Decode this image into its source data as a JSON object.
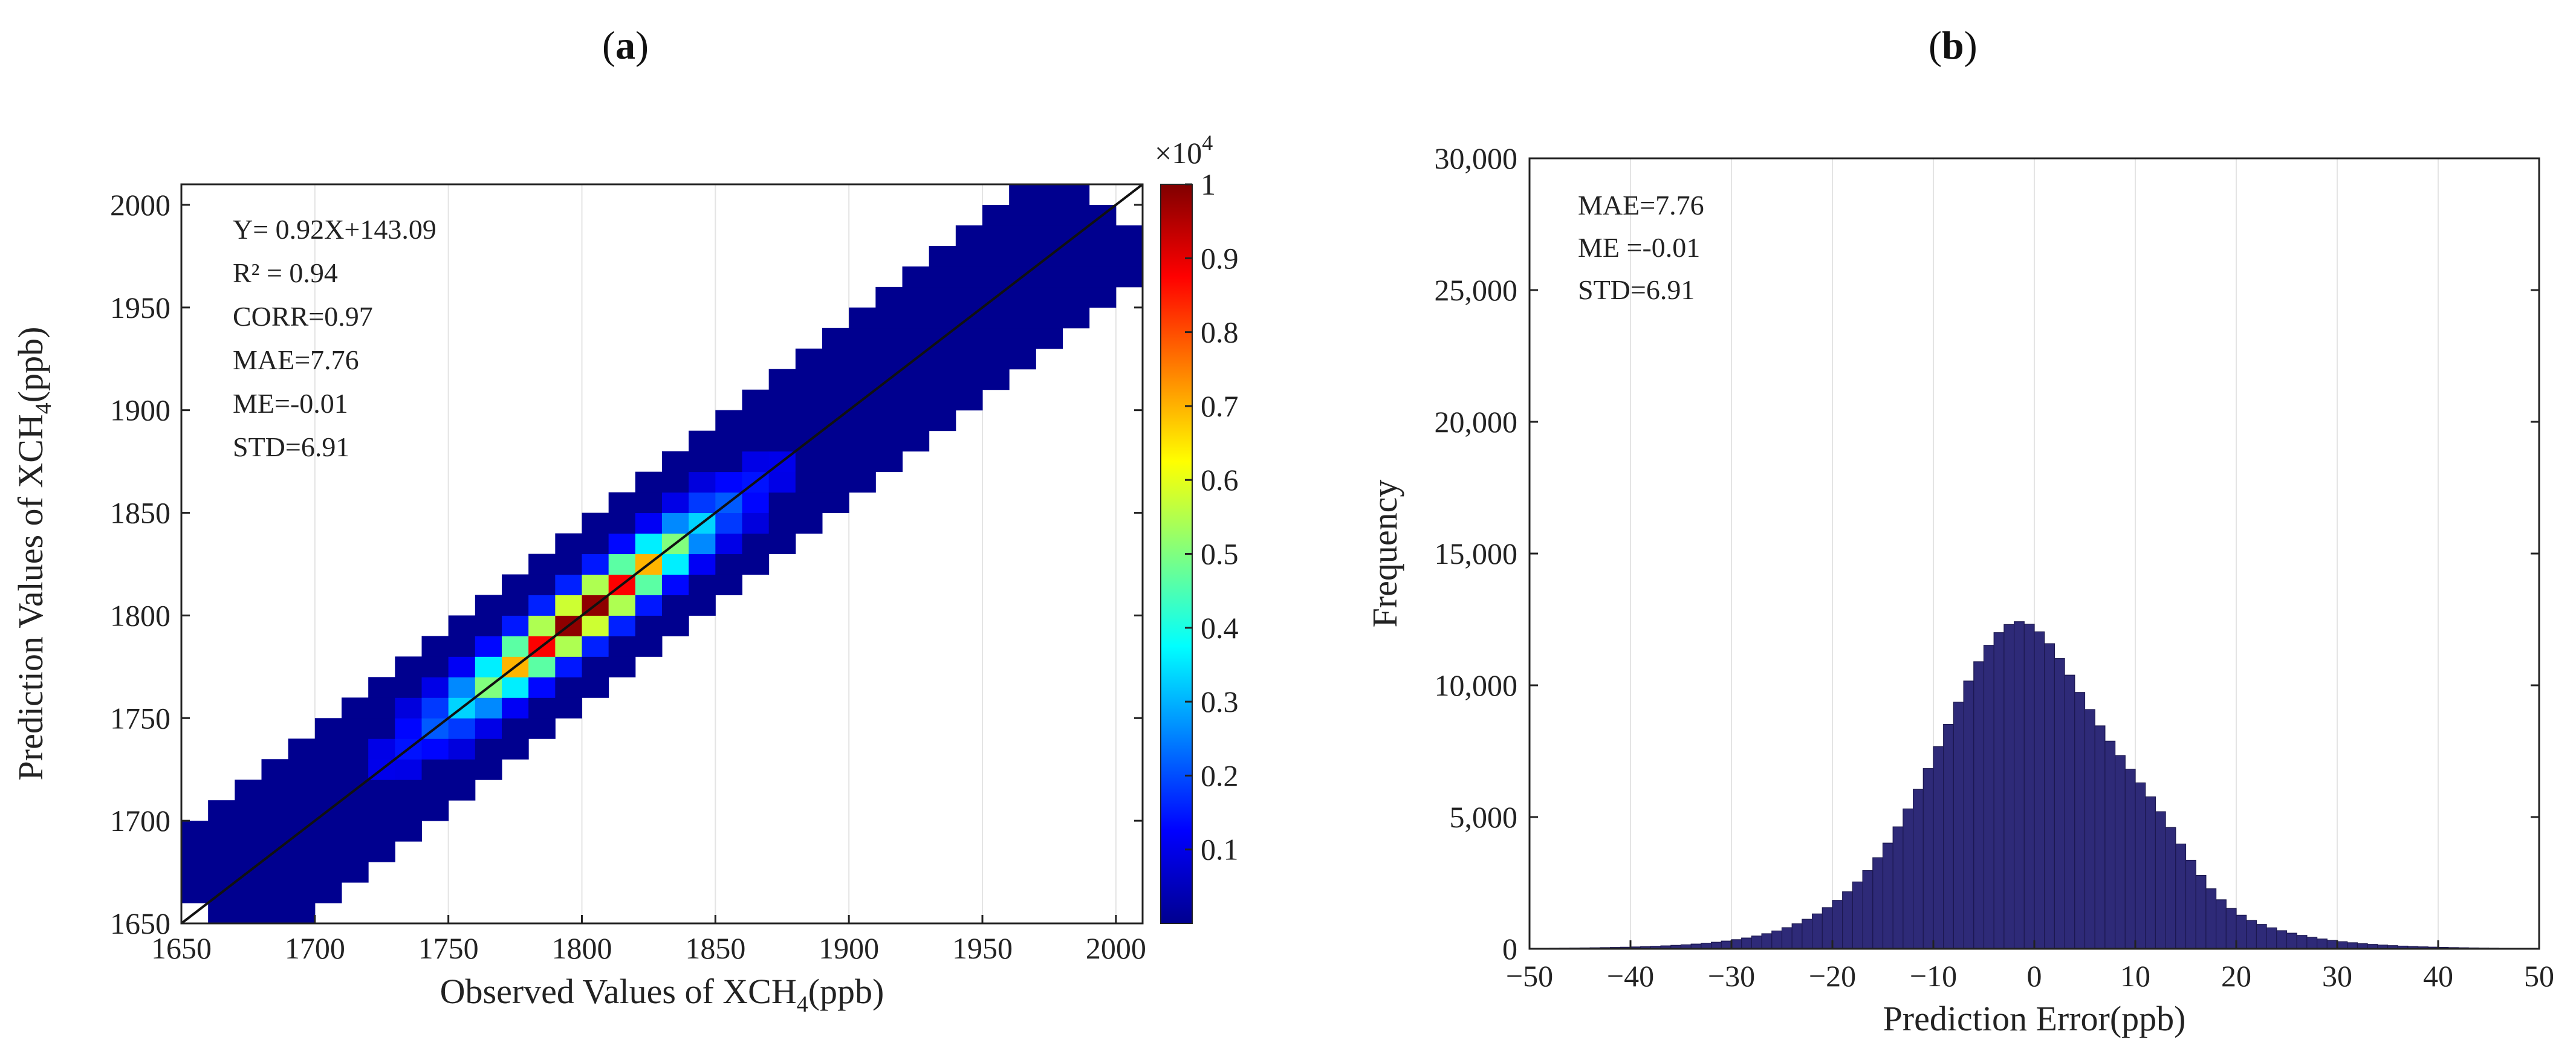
{
  "figure": {
    "panel_a_label": "a",
    "panel_b_label": "b"
  },
  "chart_data": [
    {
      "type": "heatmap",
      "panel": "a",
      "title": "",
      "xlabel_main": "Observed Values of XCH",
      "xlabel_sub": "4",
      "xlabel_unit": "(ppb)",
      "ylabel_main": "Prediction Values of XCH",
      "ylabel_sub": "4",
      "ylabel_unit": "(ppb)",
      "xlim": [
        1650,
        2010
      ],
      "ylim": [
        1650,
        2010
      ],
      "xticks": [
        1650,
        1700,
        1750,
        1800,
        1850,
        1900,
        1950,
        2000
      ],
      "yticks": [
        1650,
        1700,
        1750,
        1800,
        1850,
        1900,
        1950,
        2000
      ],
      "bin_size": 10,
      "fit_line": {
        "slope": 1.0,
        "intercept": 0.0
      },
      "annotations": [
        "Y= 0.92X+143.09",
        "R² = 0.94",
        "CORR=0.97",
        "MAE=7.76",
        "ME=-0.01",
        "STD=6.91"
      ],
      "density_model": {
        "center_x": 1800,
        "center_y": 1800,
        "peak": 1.0,
        "along_sigma": 28,
        "across_sigma": 9,
        "extent_along_min": 1660,
        "extent_along_max": 1995,
        "band_halfwidth": 45
      },
      "colorbar": {
        "exponent_label": "×10",
        "exponent_power": "4",
        "min": 0,
        "max": 1,
        "ticks": [
          0.1,
          0.2,
          0.3,
          0.4,
          0.5,
          0.6,
          0.7,
          0.8,
          0.9,
          1
        ],
        "tick_labels": [
          "0.1",
          "0.2",
          "0.3",
          "0.4",
          "0.5",
          "0.6",
          "0.7",
          "0.8",
          "0.9",
          "1"
        ],
        "colormap": "jet"
      }
    },
    {
      "type": "bar",
      "panel": "b",
      "title": "",
      "xlabel": "Prediction Error(ppb)",
      "ylabel": "Frequency",
      "xlim": [
        -50,
        50
      ],
      "ylim": [
        0,
        30000
      ],
      "xticks": [
        -50,
        -40,
        -30,
        -20,
        -10,
        0,
        10,
        20,
        30,
        40,
        50
      ],
      "xtick_labels": [
        "−50",
        "−40",
        "−30",
        "−20",
        "−10",
        "0",
        "10",
        "20",
        "30",
        "40",
        "50"
      ],
      "yticks": [
        0,
        5000,
        10000,
        15000,
        20000,
        25000,
        30000
      ],
      "ytick_labels": [
        "0",
        "5,000",
        "10,000",
        "15,000",
        "20,000",
        "25,000",
        "30,000"
      ],
      "bin_width": 1,
      "bar_color": "#2e2a78",
      "bin_centers": [
        -49.5,
        -48.5,
        -47.5,
        -46.5,
        -45.5,
        -44.5,
        -43.5,
        -42.5,
        -41.5,
        -40.5,
        -39.5,
        -38.5,
        -37.5,
        -36.5,
        -35.5,
        -34.5,
        -33.5,
        -32.5,
        -31.5,
        -30.5,
        -29.5,
        -28.5,
        -27.5,
        -26.5,
        -25.5,
        -24.5,
        -23.5,
        -22.5,
        -21.5,
        -20.5,
        -19.5,
        -18.5,
        -17.5,
        -16.5,
        -15.5,
        -14.5,
        -13.5,
        -12.5,
        -11.5,
        -10.5,
        -9.5,
        -8.5,
        -7.5,
        -6.5,
        -5.5,
        -4.5,
        -3.5,
        -2.5,
        -1.5,
        -0.5,
        0.5,
        1.5,
        2.5,
        3.5,
        4.5,
        5.5,
        6.5,
        7.5,
        8.5,
        9.5,
        10.5,
        11.5,
        12.5,
        13.5,
        14.5,
        15.5,
        16.5,
        17.5,
        18.5,
        19.5,
        20.5,
        21.5,
        22.5,
        23.5,
        24.5,
        25.5,
        26.5,
        27.5,
        28.5,
        29.5,
        30.5,
        31.5,
        32.5,
        33.5,
        34.5,
        35.5,
        36.5,
        37.5,
        38.5,
        39.5,
        40.5,
        41.5,
        42.5,
        43.5,
        44.5,
        45.5,
        46.5,
        47.5,
        48.5,
        49.5
      ],
      "values": [
        18,
        20,
        23,
        26,
        30,
        34,
        39,
        46,
        53,
        61,
        71,
        82,
        96,
        112,
        131,
        153,
        180,
        212,
        249,
        294,
        347,
        410,
        485,
        573,
        678,
        802,
        949,
        1121,
        1324,
        1562,
        1840,
        2164,
        2538,
        2968,
        3458,
        4011,
        4629,
        5310,
        6051,
        6842,
        7671,
        8518,
        9359,
        10163,
        10896,
        11520,
        12001,
        12307,
        12415,
        12319,
        12031,
        11581,
        11017,
        10386,
        9730,
        9082,
        8463,
        7882,
        7336,
        6815,
        6299,
        5768,
        5204,
        4603,
        3978,
        3360,
        2784,
        2278,
        1861,
        1531,
        1276,
        1079,
        924,
        797,
        688,
        593,
        510,
        436,
        373,
        318,
        271,
        231,
        196,
        167,
        142,
        121,
        103,
        88,
        75,
        64,
        55,
        47,
        40,
        34,
        29,
        25,
        21,
        18,
        15,
        13
      ],
      "annotations": [
        "MAE=7.76",
        "ME =-0.01",
        "STD=6.91"
      ]
    }
  ]
}
